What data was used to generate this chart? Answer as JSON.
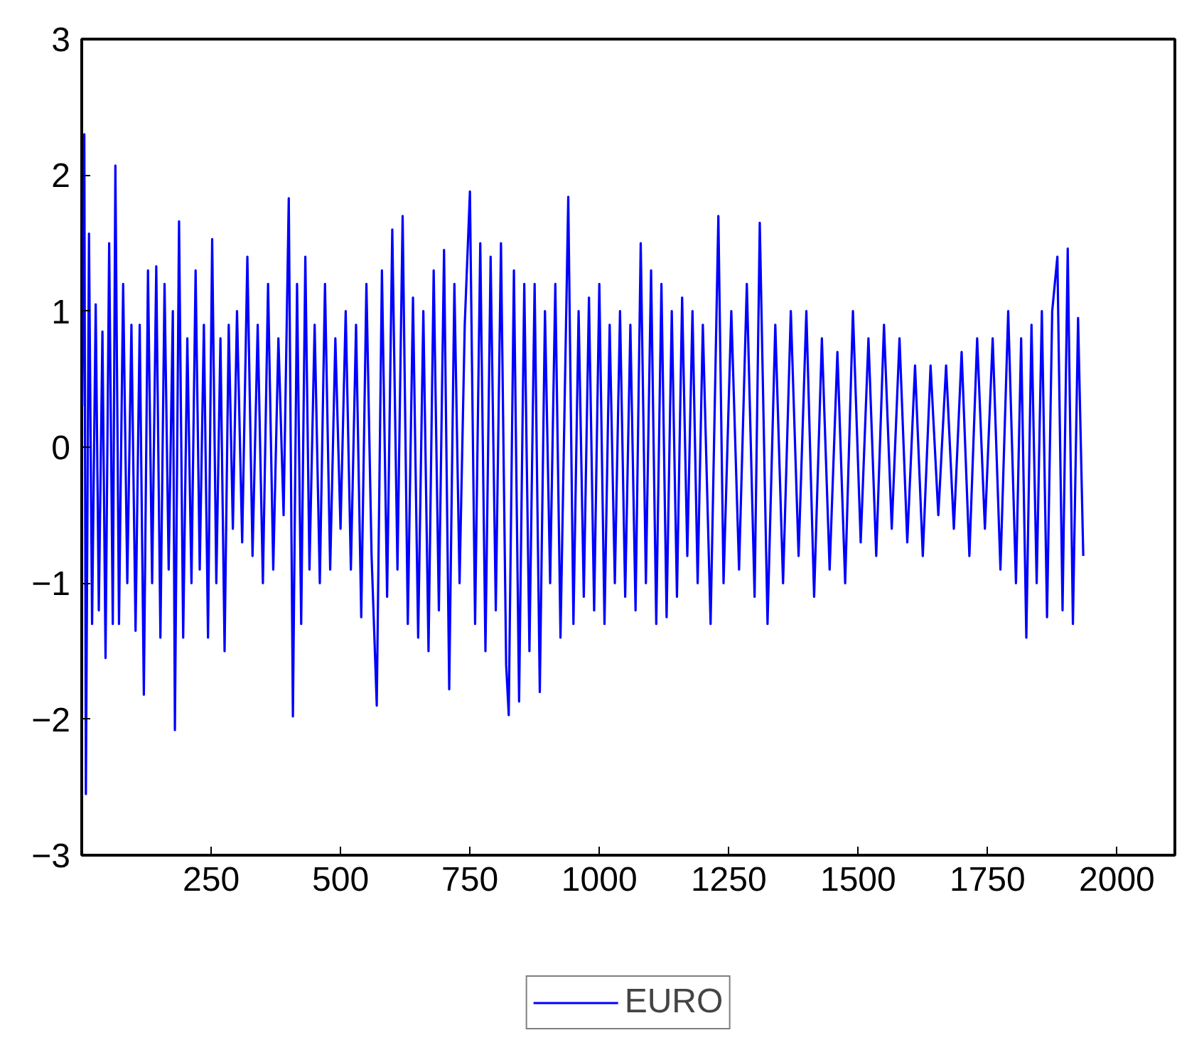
{
  "chart_data": {
    "type": "line",
    "xlim": [
      0,
      2112
    ],
    "xticks": [
      250,
      500,
      750,
      1000,
      1250,
      1500,
      1750,
      2000
    ],
    "ylim": [
      -3,
      3
    ],
    "yticks": [
      -3,
      -2,
      -1,
      0,
      1,
      2,
      3
    ],
    "grid": false,
    "legend": "bottom",
    "line_style": "solid",
    "series": [
      {
        "name": "EURO",
        "color": "#0000ff",
        "x": [
          1,
          5,
          8,
          14,
          20,
          27,
          33,
          40,
          46,
          53,
          60,
          65,
          72,
          80,
          88,
          96,
          104,
          112,
          120,
          128,
          136,
          144,
          152,
          160,
          168,
          176,
          180,
          188,
          196,
          204,
          212,
          220,
          228,
          236,
          244,
          252,
          260,
          268,
          276,
          284,
          292,
          300,
          310,
          320,
          330,
          340,
          350,
          360,
          370,
          380,
          390,
          400,
          408,
          416,
          424,
          432,
          440,
          450,
          460,
          470,
          480,
          490,
          500,
          510,
          520,
          530,
          540,
          550,
          560,
          570,
          580,
          590,
          600,
          610,
          620,
          630,
          640,
          650,
          660,
          670,
          680,
          690,
          700,
          710,
          720,
          730,
          740,
          750,
          760,
          770,
          780,
          790,
          800,
          810,
          820,
          825,
          835,
          845,
          855,
          865,
          875,
          885,
          895,
          905,
          915,
          925,
          940,
          950,
          960,
          970,
          980,
          990,
          1000,
          1010,
          1020,
          1030,
          1040,
          1050,
          1060,
          1070,
          1080,
          1090,
          1100,
          1110,
          1120,
          1130,
          1140,
          1150,
          1160,
          1170,
          1180,
          1190,
          1200,
          1215,
          1230,
          1240,
          1255,
          1270,
          1285,
          1300,
          1310,
          1325,
          1340,
          1355,
          1370,
          1385,
          1400,
          1415,
          1430,
          1445,
          1460,
          1475,
          1490,
          1505,
          1520,
          1535,
          1550,
          1565,
          1580,
          1595,
          1610,
          1625,
          1640,
          1655,
          1670,
          1685,
          1700,
          1715,
          1730,
          1745,
          1760,
          1775,
          1790,
          1805,
          1815,
          1825,
          1835,
          1845,
          1855,
          1865,
          1875,
          1885,
          1895,
          1905,
          1915,
          1925,
          1935
        ],
        "values": [
          0.3,
          2.3,
          -2.55,
          1.57,
          -1.3,
          1.05,
          -1.2,
          0.85,
          -1.55,
          1.5,
          -1.3,
          2.07,
          -1.3,
          1.2,
          -1.0,
          0.9,
          -1.35,
          0.9,
          -1.82,
          1.3,
          -1.0,
          1.33,
          -1.4,
          1.2,
          -0.9,
          1.0,
          -2.08,
          1.66,
          -1.4,
          0.8,
          -1.0,
          1.3,
          -0.9,
          0.9,
          -1.4,
          1.53,
          -1.0,
          0.8,
          -1.5,
          0.9,
          -0.6,
          1.0,
          -0.7,
          1.4,
          -0.8,
          0.9,
          -1.0,
          1.2,
          -0.9,
          0.8,
          -0.5,
          1.83,
          -1.98,
          1.2,
          -1.3,
          1.4,
          -0.9,
          0.9,
          -1.0,
          1.2,
          -0.9,
          0.8,
          -0.6,
          1.0,
          -0.9,
          0.9,
          -1.25,
          1.2,
          -0.8,
          -1.9,
          1.3,
          -1.1,
          1.6,
          -0.9,
          1.7,
          -1.3,
          1.1,
          -1.4,
          1.0,
          -1.5,
          1.3,
          -1.2,
          1.45,
          -1.78,
          1.2,
          -1.0,
          0.9,
          1.88,
          -1.3,
          1.5,
          -1.5,
          1.4,
          -1.2,
          1.5,
          -1.6,
          -1.97,
          1.3,
          -1.87,
          1.2,
          -1.5,
          1.2,
          -1.8,
          1.0,
          -1.0,
          1.2,
          -1.4,
          1.84,
          -1.3,
          1.0,
          -1.1,
          1.1,
          -1.2,
          1.2,
          -1.3,
          0.9,
          -1.0,
          1.0,
          -1.1,
          0.9,
          -1.2,
          1.5,
          -1.0,
          1.3,
          -1.3,
          1.2,
          -1.25,
          1.0,
          -1.1,
          1.1,
          -0.8,
          1.0,
          -1.0,
          0.9,
          -1.3,
          1.7,
          -1.0,
          1.0,
          -0.9,
          1.2,
          -1.1,
          1.65,
          -1.3,
          0.9,
          -1.0,
          1.0,
          -0.8,
          1.0,
          -1.1,
          0.8,
          -0.9,
          0.7,
          -1.0,
          1.0,
          -0.7,
          0.8,
          -0.8,
          0.9,
          -0.6,
          0.8,
          -0.7,
          0.6,
          -0.8,
          0.6,
          -0.5,
          0.6,
          -0.6,
          0.7,
          -0.8,
          0.8,
          -0.6,
          0.8,
          -0.9,
          1.0,
          -1.0,
          0.8,
          -1.4,
          0.9,
          -1.0,
          1.0,
          -1.25,
          1.0,
          1.4,
          -1.2,
          1.46,
          -1.3,
          0.95,
          -0.8
        ]
      }
    ]
  }
}
